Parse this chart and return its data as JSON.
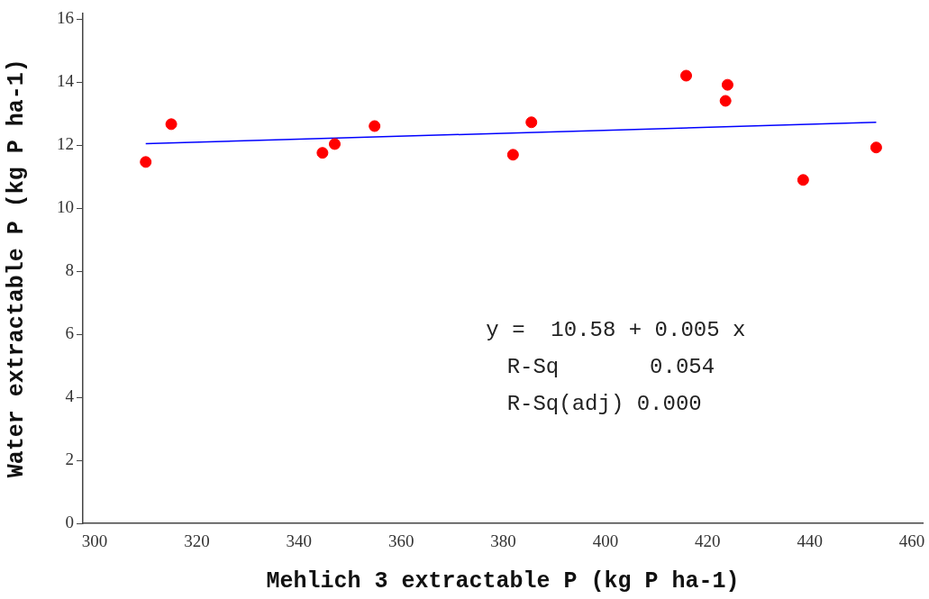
{
  "chart_data": {
    "type": "scatter",
    "xlabel": "Mehlich 3 extractable P (kg P ha-1)",
    "ylabel": "Water extractable P (kg P ha-1)",
    "x": [
      310.0,
      315.0,
      344.6,
      347.0,
      354.8,
      381.9,
      385.5,
      415.8,
      423.9,
      423.5,
      438.7,
      453.0
    ],
    "series": [
      {
        "type": "scatter",
        "color": "#ff0000",
        "values": [
          11.47,
          12.67,
          11.76,
          12.04,
          12.61,
          11.7,
          12.73,
          14.21,
          13.92,
          13.41,
          10.9,
          11.93
        ]
      },
      {
        "type": "line",
        "marker": "none",
        "color": "#0000ff",
        "x": [
          310.0,
          453.0
        ],
        "values": [
          12.05,
          12.73
        ]
      }
    ],
    "xlim": [
      297.7,
      462.1
    ],
    "ylim": [
      0,
      16.2
    ],
    "xticks": [
      300,
      320,
      340,
      360,
      380,
      400,
      420,
      440,
      460
    ],
    "yticks": [
      0,
      2,
      4,
      6,
      8,
      10,
      12,
      14,
      16
    ],
    "marker": "circle",
    "grid": false,
    "legend": false,
    "annotations": [
      "y =  10.58 + 0.005 x",
      "R-Sq       0.054",
      "R-Sq(adj) 0.000"
    ]
  }
}
